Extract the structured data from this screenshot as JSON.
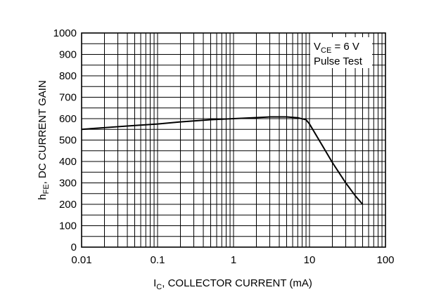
{
  "chart_data": {
    "type": "line",
    "x_scale": "log",
    "xlim": [
      0.01,
      100
    ],
    "ylim": [
      0,
      1000
    ],
    "grid": true,
    "x_ticks": [
      "0.01",
      "0.1",
      "1",
      "10",
      "100"
    ],
    "y_ticks": [
      "0",
      "100",
      "200",
      "300",
      "400",
      "500",
      "600",
      "700",
      "800",
      "900",
      "1000"
    ],
    "xlabel": {
      "main": "I",
      "sub": "C",
      "rest": ", COLLECTOR CURRENT (mA)"
    },
    "ylabel": {
      "main": "h",
      "sub": "FE",
      "rest": ", DC CURRENT GAIN"
    },
    "annotation": {
      "line1_main": "V",
      "line1_sub": "CE",
      "line1_rest": " = 6 V",
      "line2": "Pulse Test"
    },
    "series": [
      {
        "x": [
          0.01,
          0.02,
          0.05,
          0.1,
          0.2,
          0.5,
          1,
          2,
          3,
          5,
          7,
          9,
          10,
          15,
          20,
          30,
          40,
          50
        ],
        "y": [
          550,
          558,
          568,
          575,
          585,
          595,
          600,
          605,
          608,
          608,
          604,
          595,
          575,
          470,
          395,
          300,
          240,
          200
        ]
      }
    ]
  }
}
